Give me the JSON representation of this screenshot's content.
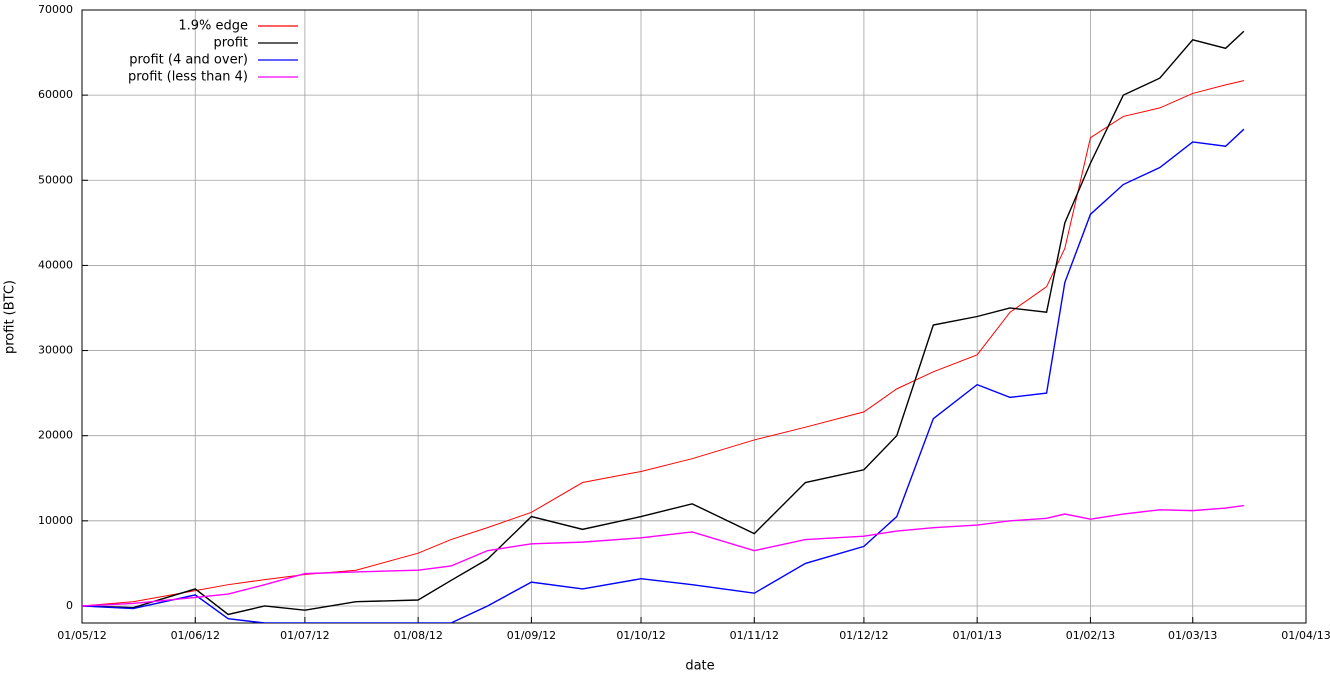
{
  "chart_data": {
    "type": "line",
    "xlabel": "date",
    "ylabel": "profit (BTC)",
    "x": [
      "01/05/12",
      "15/05/12",
      "01/06/12",
      "10/06/12",
      "20/06/12",
      "01/07/12",
      "15/07/12",
      "01/08/12",
      "10/08/12",
      "20/08/12",
      "01/09/12",
      "15/09/12",
      "01/10/12",
      "15/10/12",
      "01/11/12",
      "15/11/12",
      "01/12/12",
      "10/12/12",
      "20/12/12",
      "01/01/13",
      "10/01/13",
      "20/01/13",
      "25/01/13",
      "01/02/13",
      "10/02/13",
      "20/02/13",
      "01/03/13",
      "10/03/13",
      "15/03/13"
    ],
    "series": [
      {
        "name": "1.9% edge",
        "color": "#ff0000",
        "values": [
          0,
          500,
          1800,
          2500,
          3100,
          3700,
          4200,
          6200,
          7800,
          9200,
          11000,
          14500,
          15800,
          17300,
          19500,
          21000,
          22800,
          25500,
          27500,
          29500,
          34500,
          37500,
          42000,
          55000,
          57500,
          58500,
          60200,
          61200,
          61700
        ]
      },
      {
        "name": "profit",
        "color": "#000000",
        "values": [
          0,
          -200,
          2000,
          -1000,
          0,
          -500,
          500,
          700,
          3000,
          5500,
          10500,
          9000,
          10500,
          12000,
          8500,
          14500,
          16000,
          20000,
          33000,
          34000,
          35000,
          34500,
          45000,
          52000,
          60000,
          62000,
          66500,
          65500,
          67500
        ]
      },
      {
        "name": "profit (4 and over)",
        "color": "#0000ff",
        "values": [
          0,
          -300,
          1300,
          -1500,
          -2000,
          -2000,
          -2000,
          -2000,
          -2000,
          0,
          2800,
          2000,
          3200,
          2500,
          1500,
          5000,
          7000,
          10500,
          22000,
          26000,
          24500,
          25000,
          38000,
          46000,
          49500,
          51500,
          54500,
          54000,
          56000
        ]
      },
      {
        "name": "profit (less than 4)",
        "color": "#ff00ff",
        "values": [
          0,
          300,
          1000,
          1400,
          2500,
          3800,
          4000,
          4200,
          4700,
          6500,
          7300,
          7500,
          8000,
          8700,
          6500,
          7800,
          8200,
          8800,
          9200,
          9500,
          10000,
          10300,
          10800,
          10200,
          10800,
          11300,
          11200,
          11500,
          11800
        ]
      }
    ],
    "xlim": [
      "01/05/12",
      "01/04/13"
    ],
    "xticks": [
      "01/05/12",
      "01/06/12",
      "01/07/12",
      "01/08/12",
      "01/09/12",
      "01/10/12",
      "01/11/12",
      "01/12/12",
      "01/01/13",
      "01/02/13",
      "01/03/13",
      "01/04/13"
    ],
    "ylim": [
      -2000,
      70000
    ],
    "yticks": [
      0,
      10000,
      20000,
      30000,
      40000,
      50000,
      60000,
      70000
    ],
    "grid": true,
    "legend": "top-left"
  }
}
